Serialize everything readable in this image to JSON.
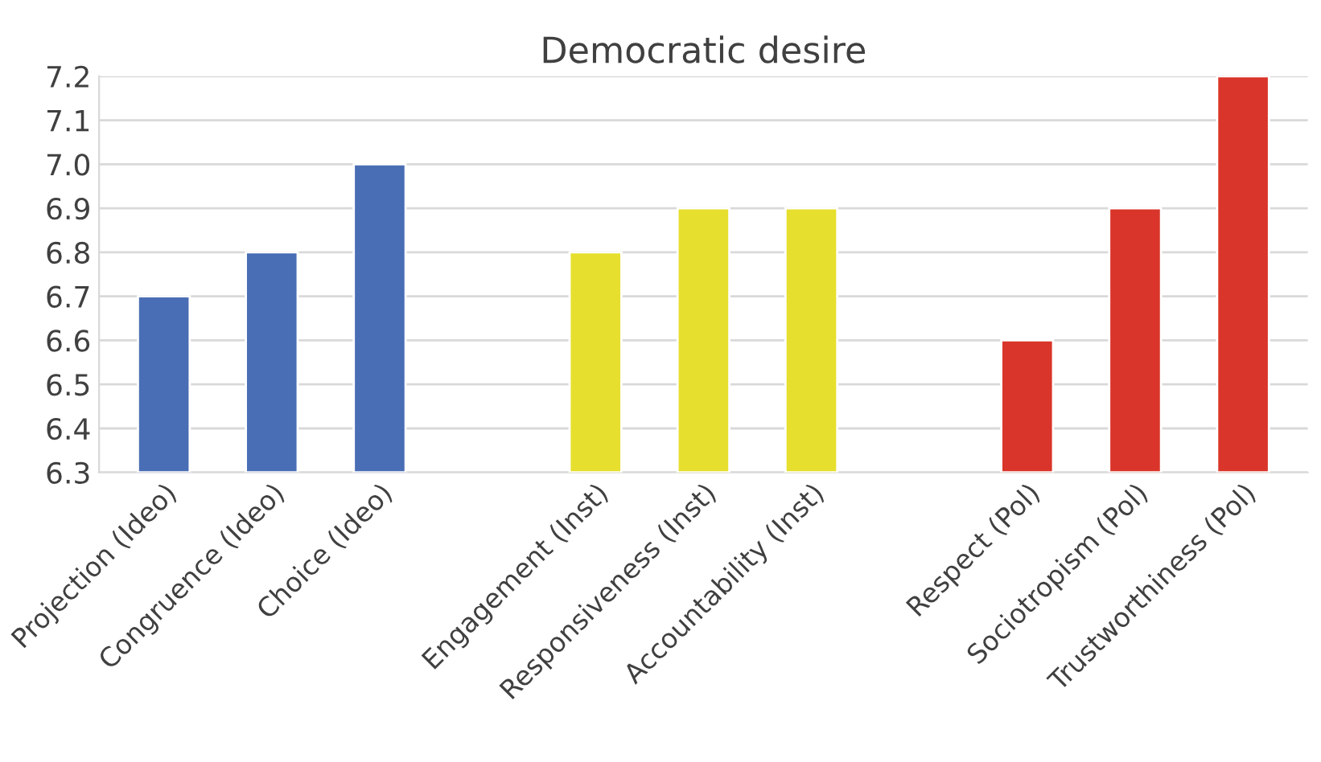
{
  "chart_data": {
    "type": "bar",
    "title": "Democratic desire",
    "categories": [
      "Projection (Ideo)",
      "Congruence (Ideo)",
      "Choice (Ideo)",
      null,
      "Engagement (Inst)",
      "Responsiveness (Inst)",
      "Accountability (Inst)",
      null,
      "Respect (Pol)",
      "Sociotropism (Pol)",
      "Trustworthiness (Pol)"
    ],
    "values": [
      6.7,
      6.8,
      7.0,
      null,
      6.8,
      6.9,
      6.9,
      null,
      6.6,
      6.9,
      7.2
    ],
    "colors": [
      "#4a6eb5",
      "#4a6eb5",
      "#4a6eb5",
      null,
      "#e6df2e",
      "#e6df2e",
      "#e6df2e",
      null,
      "#d9352a",
      "#d9352a",
      "#d9352a"
    ],
    "ylim": [
      6.3,
      7.2
    ],
    "yticks": [
      6.3,
      6.4,
      6.5,
      6.6,
      6.7,
      6.8,
      6.9,
      {
        "value": 7.0,
        "label": "7.0"
      },
      7.1,
      7.2
    ],
    "grid": "y"
  }
}
